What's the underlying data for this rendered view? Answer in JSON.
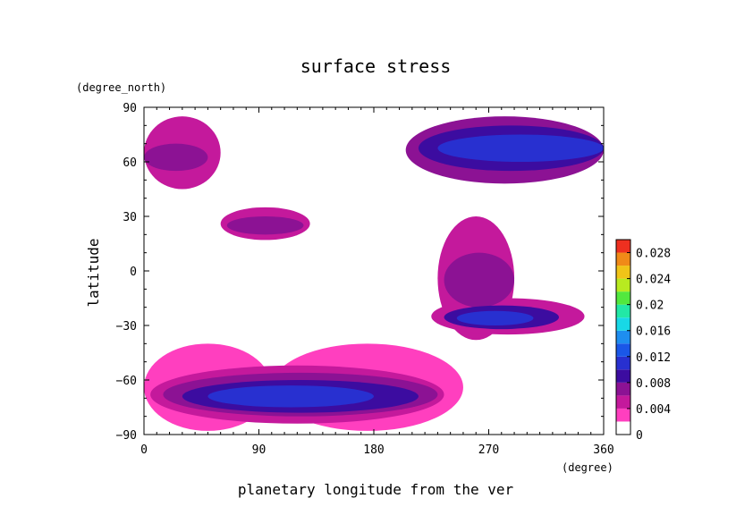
{
  "chart_data": {
    "type": "heatmap",
    "title": "surface stress",
    "xlabel": "planetary longitude from the ver",
    "ylabel": "latitude",
    "x_units": "(degree)",
    "y_units": "(degree_north)",
    "xlim": [
      0,
      360
    ],
    "ylim": [
      -90,
      90
    ],
    "x_ticks": [
      {
        "value": 0,
        "label": "0"
      },
      {
        "value": 90,
        "label": "90"
      },
      {
        "value": 180,
        "label": "180"
      },
      {
        "value": 270,
        "label": "270"
      },
      {
        "value": 360,
        "label": "360"
      }
    ],
    "y_ticks": [
      {
        "value": 90,
        "label": "90"
      },
      {
        "value": 60,
        "label": "60"
      },
      {
        "value": 30,
        "label": "30"
      },
      {
        "value": 0,
        "label": "0"
      },
      {
        "value": -30,
        "label": "−30"
      },
      {
        "value": -60,
        "label": "−60"
      },
      {
        "value": -90,
        "label": "−90"
      }
    ],
    "colorbar": {
      "range": [
        0,
        0.03
      ],
      "tick_labels": [
        {
          "value": 0,
          "label": "0"
        },
        {
          "value": 0.004,
          "label": "0.004"
        },
        {
          "value": 0.008,
          "label": "0.008"
        },
        {
          "value": 0.012,
          "label": "0.012"
        },
        {
          "value": 0.016,
          "label": "0.016"
        },
        {
          "value": 0.02,
          "label": "0.02"
        },
        {
          "value": 0.024,
          "label": "0.024"
        },
        {
          "value": 0.028,
          "label": "0.028"
        }
      ],
      "levels": [
        0,
        0.002,
        0.004,
        0.006,
        0.008,
        0.01,
        0.012,
        0.014,
        0.016,
        0.018,
        0.02,
        0.022,
        0.024,
        0.026,
        0.028,
        0.03
      ],
      "colors": [
        "#ffffff",
        "#ff3fbf",
        "#c4199c",
        "#8c1294",
        "#3c0ca0",
        "#2830d0",
        "#1a57e8",
        "#1e8ef0",
        "#18d8e6",
        "#22e8a6",
        "#52e83e",
        "#b8ea20",
        "#f0c418",
        "#f08a18",
        "#ee3020",
        "#f08a8a"
      ]
    },
    "regions": [
      {
        "lon": [
          0,
          100
        ],
        "lat": [
          -88,
          -40
        ],
        "value": 0.0025
      },
      {
        "lon": [
          100,
          250
        ],
        "lat": [
          -88,
          -40
        ],
        "value": 0.0025
      },
      {
        "lon": [
          5,
          235
        ],
        "lat": [
          -84,
          -52
        ],
        "value": 0.0055
      },
      {
        "lon": [
          15,
          230
        ],
        "lat": [
          -80,
          -56
        ],
        "value": 0.0075
      },
      {
        "lon": [
          30,
          215
        ],
        "lat": [
          -78,
          -60
        ],
        "value": 0.009
      },
      {
        "lon": [
          50,
          180
        ],
        "lat": [
          -75,
          -63
        ],
        "value": 0.011
      },
      {
        "lon": [
          230,
          290
        ],
        "lat": [
          -38,
          30
        ],
        "value": 0.0045
      },
      {
        "lon": [
          235,
          290
        ],
        "lat": [
          -20,
          10
        ],
        "value": 0.0065
      },
      {
        "lon": [
          225,
          345
        ],
        "lat": [
          -35,
          -15
        ],
        "value": 0.005
      },
      {
        "lon": [
          235,
          325
        ],
        "lat": [
          -32,
          -19
        ],
        "value": 0.008
      },
      {
        "lon": [
          245,
          305
        ],
        "lat": [
          -30,
          -22
        ],
        "value": 0.011
      },
      {
        "lon": [
          60,
          130
        ],
        "lat": [
          17,
          35
        ],
        "value": 0.004
      },
      {
        "lon": [
          65,
          125
        ],
        "lat": [
          20,
          30
        ],
        "value": 0.0075
      },
      {
        "lon": [
          205,
          360
        ],
        "lat": [
          48,
          85
        ],
        "value": 0.006
      },
      {
        "lon": [
          215,
          360
        ],
        "lat": [
          55,
          80
        ],
        "value": 0.009
      },
      {
        "lon": [
          230,
          360
        ],
        "lat": [
          60,
          75
        ],
        "value": 0.011
      },
      {
        "lon": [
          0,
          60
        ],
        "lat": [
          45,
          85
        ],
        "value": 0.0045
      },
      {
        "lon": [
          0,
          50
        ],
        "lat": [
          55,
          70
        ],
        "value": 0.007
      }
    ]
  }
}
